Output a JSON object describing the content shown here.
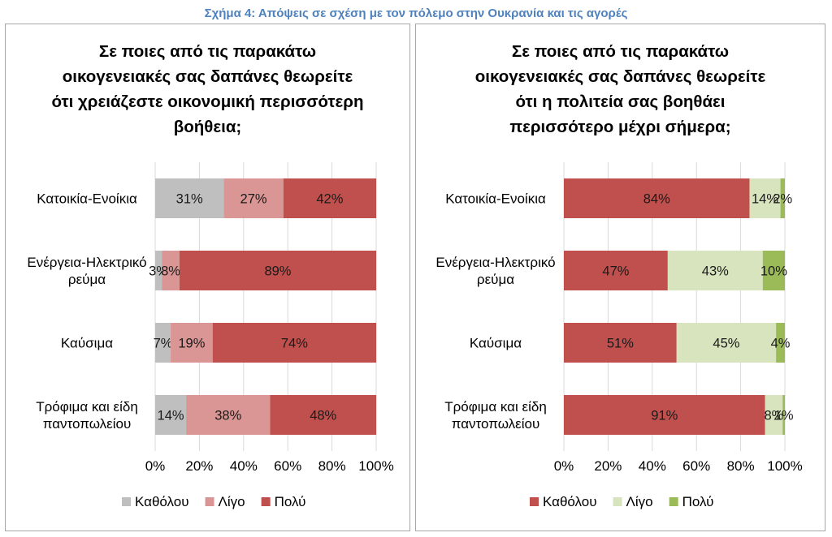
{
  "figure_title": "Σχήμα 4: Απόψεις σε σχέση με τον πόλεμο στην Ουκρανία και τις αγορές",
  "chart_data": [
    {
      "type": "bar",
      "orientation": "horizontal",
      "stacked": "percent",
      "title_lines": [
        "Σε ποιες από τις παρακάτω",
        "οικογενειακές σας δαπάνες θεωρείτε",
        "ότι χρειάζεστε οικονομική περισσότερη",
        "βοήθεια;"
      ],
      "title": "Σε ποιες από τις παρακάτω οικογενειακές σας δαπάνες θεωρείτε ότι χρειάζεστε οικονομική περισσότερη βοήθεια;",
      "categories": [
        [
          "Κατοικία-Ενοίκια"
        ],
        [
          "Ενέργεια-Ηλεκτρικό",
          "ρεύμα"
        ],
        [
          "Καύσιμα"
        ],
        [
          "Τρόφιμα και είδη",
          "παντοπωλείου"
        ]
      ],
      "series": [
        {
          "name": "Καθόλου",
          "color": "#bfbfbf",
          "values": [
            31,
            3,
            7,
            14
          ]
        },
        {
          "name": "Λίγο",
          "color": "#da9694",
          "values": [
            27,
            8,
            19,
            38
          ]
        },
        {
          "name": "Πολύ",
          "color": "#c0504d",
          "values": [
            42,
            89,
            74,
            48
          ]
        }
      ],
      "data_labels": [
        [
          "31%",
          "27%",
          "42%"
        ],
        [
          "3%",
          "8%",
          "89%"
        ],
        [
          "7%",
          "19%",
          "74%"
        ],
        [
          "14%",
          "38%",
          "48%"
        ]
      ],
      "xlim": [
        0,
        100
      ],
      "xticks": [
        "0%",
        "20%",
        "40%",
        "60%",
        "80%",
        "100%"
      ],
      "grid": true,
      "legend_position": "bottom"
    },
    {
      "type": "bar",
      "orientation": "horizontal",
      "stacked": "percent",
      "title_lines": [
        "Σε ποιες από τις παρακάτω",
        "οικογενειακές σας δαπάνες θεωρείτε",
        "ότι η πολιτεία σας βοηθάει",
        "περισσότερο μέχρι σήμερα;"
      ],
      "title": "Σε ποιες από τις παρακάτω οικογενειακές σας δαπάνες θεωρείτε ότι η πολιτεία σας βοηθάει περισσότερο μέχρι σήμερα;",
      "categories": [
        [
          "Κατοικία-Ενοίκια"
        ],
        [
          "Ενέργεια-Ηλεκτρικό",
          "ρεύμα"
        ],
        [
          "Καύσιμα"
        ],
        [
          "Τρόφιμα και είδη",
          "παντοπωλείου"
        ]
      ],
      "series": [
        {
          "name": "Καθόλου",
          "color": "#c0504d",
          "values": [
            84,
            47,
            51,
            91
          ]
        },
        {
          "name": "Λίγο",
          "color": "#d7e4bd",
          "values": [
            14,
            43,
            45,
            8
          ]
        },
        {
          "name": "Πολύ",
          "color": "#9bbb59",
          "values": [
            2,
            10,
            4,
            1
          ]
        }
      ],
      "data_labels": [
        [
          "84%",
          "14%",
          "2%"
        ],
        [
          "47%",
          "43%",
          "10%"
        ],
        [
          "51%",
          "45%",
          "4%"
        ],
        [
          "91%",
          "8%",
          "1%"
        ]
      ],
      "xlim": [
        0,
        100
      ],
      "xticks": [
        "0%",
        "20%",
        "40%",
        "60%",
        "80%",
        "100%"
      ],
      "grid": true,
      "legend_position": "bottom"
    }
  ]
}
